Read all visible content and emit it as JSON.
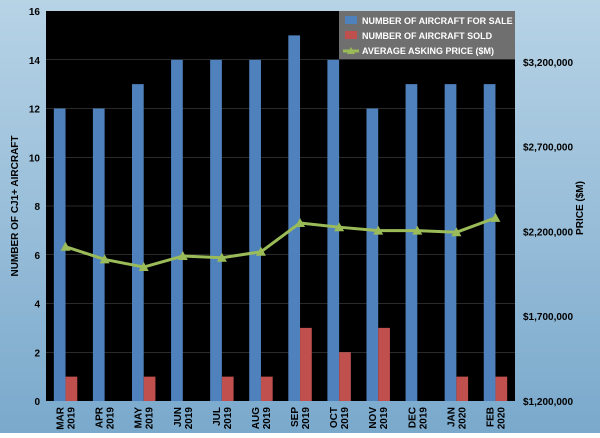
{
  "colors": {
    "background_gradient_top": "#b7d3e6",
    "background_gradient_bottom": "#7aa9cc",
    "plot_background": "#000000",
    "gridline": "#555555",
    "bars_for_sale": "#4f81bd",
    "bars_sold": "#c0504d",
    "line_price": "#9bbb59",
    "legend_background": "#6f6f6f",
    "legend_text": "#ffffff",
    "axis_text": "#000000"
  },
  "chart_data": {
    "type": "bar",
    "title": "",
    "xlabel": "",
    "ylabel": "NUMBER OF CJ1+ AIRCRAFT",
    "ylabel_right": "PRICE ($M)",
    "categories": [
      [
        "MAR",
        "2019"
      ],
      [
        "APR",
        "2019"
      ],
      [
        "MAY",
        "2019"
      ],
      [
        "JUN",
        "2019"
      ],
      [
        "JUL",
        "2019"
      ],
      [
        "AUG",
        "2019"
      ],
      [
        "SEP",
        "2019"
      ],
      [
        "OCT",
        "2019"
      ],
      [
        "NOV",
        "2019"
      ],
      [
        "DEC",
        "2019"
      ],
      [
        "JAN",
        "2020"
      ],
      [
        "FEB",
        "2020"
      ]
    ],
    "ylim": [
      0,
      16
    ],
    "yticks": [
      "0",
      "2",
      "4",
      "6",
      "8",
      "10",
      "12",
      "14",
      "16"
    ],
    "y2lim": [
      1200000,
      3500000
    ],
    "y2ticks": [
      {
        "value": 1200000,
        "label": "$1,200,000"
      },
      {
        "value": 1700000,
        "label": "$1,700,000"
      },
      {
        "value": 2200000,
        "label": "$2,200,000"
      },
      {
        "value": 2700000,
        "label": "$2,700,000"
      },
      {
        "value": 3200000,
        "label": "$3,200,000"
      }
    ],
    "grid": true,
    "legend_position": "top-right",
    "series": [
      {
        "name": "NUMBER OF AIRCRAFT FOR SALE",
        "kind": "bar",
        "axis": "left",
        "values": [
          12,
          12,
          13,
          14,
          14,
          14,
          15,
          14,
          12,
          13,
          13,
          13
        ]
      },
      {
        "name": "NUMBER OF AIRCRAFT SOLD",
        "kind": "bar",
        "axis": "left",
        "values": [
          1,
          0,
          1,
          0,
          1,
          1,
          3,
          2,
          3,
          0,
          1,
          1
        ]
      },
      {
        "name": "AVERAGE ASKING PRICE ($M)",
        "kind": "line",
        "marker": "triangle",
        "axis": "right",
        "values": [
          2110000,
          2035000,
          1990000,
          2055000,
          2045000,
          2080000,
          2250000,
          2225000,
          2205000,
          2205000,
          2195000,
          2280000
        ]
      }
    ]
  }
}
